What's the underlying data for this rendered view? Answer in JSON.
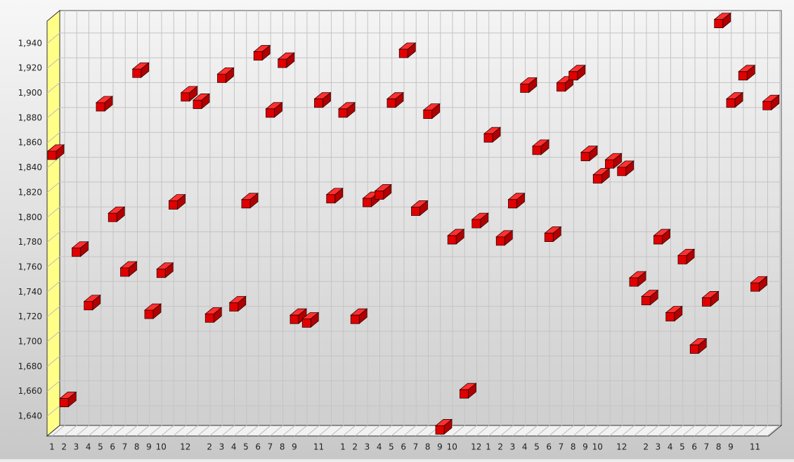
{
  "chart_data": {
    "type": "scatter3d",
    "categories": [
      "1",
      "2",
      "3",
      "4",
      "5",
      "6",
      "7",
      "8",
      "9",
      "10",
      null,
      "12",
      null,
      "2",
      "3",
      "4",
      "5",
      "6",
      "7",
      "8",
      "9",
      null,
      "11",
      null,
      "1",
      "2",
      "3",
      "4",
      "5",
      "6",
      "7",
      "8",
      "9",
      "10",
      null,
      "12",
      "1",
      "2",
      "3",
      "4",
      "5",
      "6",
      "7",
      "8",
      "9",
      "10",
      null,
      "12",
      null,
      "2",
      "3",
      "4",
      "5",
      "6",
      "7",
      "8",
      "9",
      null,
      "11",
      null
    ],
    "values": [
      1850,
      1651,
      1772,
      1729,
      1889,
      1800,
      1756,
      1916,
      1722,
      1755,
      1810,
      1897,
      1891,
      1719,
      1912,
      1728,
      1811,
      1930,
      1884,
      1924,
      1718,
      1715,
      1892,
      1815,
      1884,
      1718,
      1812,
      1818,
      1892,
      1932,
      1805,
      1883,
      1629,
      1782,
      1658,
      1795,
      1864,
      1781,
      1811,
      1904,
      1854,
      1784,
      1905,
      1914,
      1849,
      1831,
      1843,
      1837,
      1748,
      1733,
      1782,
      1720,
      1766,
      1694,
      1732,
      1956,
      1892,
      1914,
      1744,
      1890
    ],
    "color": "#e00000",
    "ylim": [
      1625,
      1965
    ],
    "yticks": [
      {
        "value": 1640,
        "label": "1,640"
      },
      {
        "value": 1660,
        "label": "1,660"
      },
      {
        "value": 1680,
        "label": "1,680"
      },
      {
        "value": 1700,
        "label": "1,700"
      },
      {
        "value": 1720,
        "label": "1,720"
      },
      {
        "value": 1740,
        "label": "1,740"
      },
      {
        "value": 1760,
        "label": "1,760"
      },
      {
        "value": 1780,
        "label": "1,780"
      },
      {
        "value": 1800,
        "label": "1,800"
      },
      {
        "value": 1820,
        "label": "1,820"
      },
      {
        "value": 1840,
        "label": "1,840"
      },
      {
        "value": 1860,
        "label": "1,860"
      },
      {
        "value": 1880,
        "label": "1,880"
      },
      {
        "value": 1900,
        "label": "1,900"
      },
      {
        "value": 1920,
        "label": "1,920"
      },
      {
        "value": 1940,
        "label": "1,940"
      }
    ],
    "grid": true
  }
}
